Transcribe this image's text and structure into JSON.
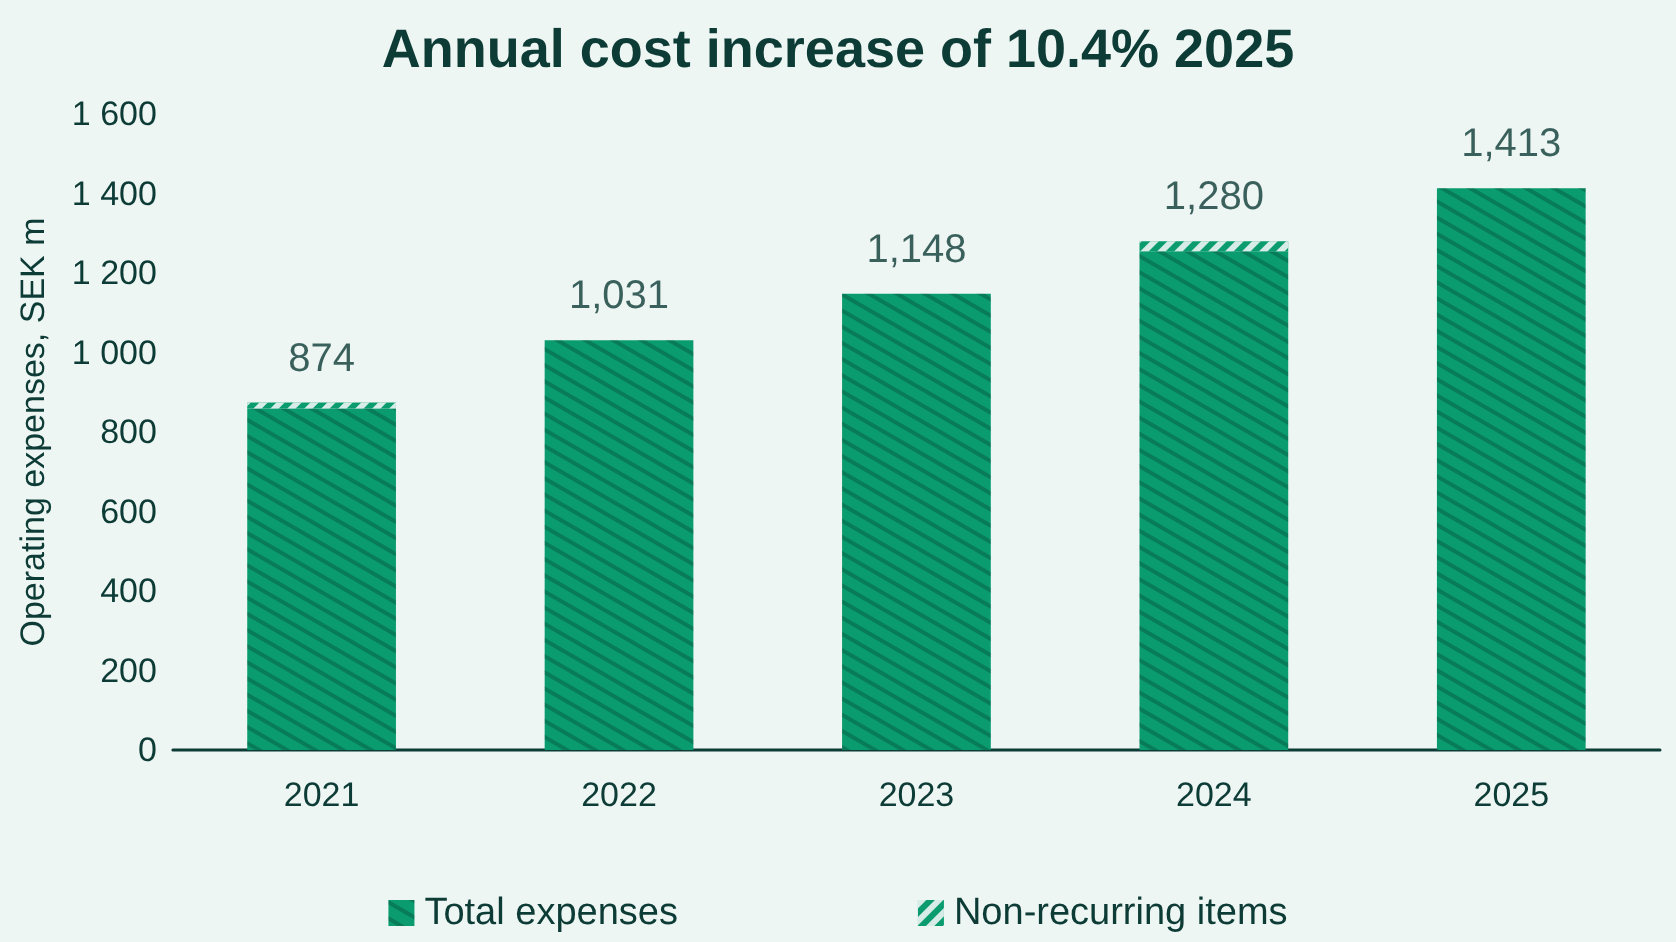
{
  "chart_data": {
    "type": "bar",
    "title": "Annual cost increase of 10.4% 2025",
    "ylabel": "Operating expenses, SEK m",
    "categories": [
      "2021",
      "2022",
      "2023",
      "2024",
      "2025"
    ],
    "series": [
      {
        "name": "Total expenses",
        "color": "#0a9b6e",
        "values": [
          859,
          1031,
          1148,
          1255,
          1413
        ]
      },
      {
        "name": "Non-recurring items",
        "color": "#0a9b6e",
        "values": [
          15,
          null,
          null,
          25,
          null
        ]
      }
    ],
    "stacked": true,
    "totals": [
      "874",
      "1,031",
      "1,148",
      "1,280",
      "1,413"
    ],
    "ylim": [
      0,
      1600
    ],
    "yticks": [
      0,
      200,
      400,
      600,
      800,
      {
        "value": 1000,
        "label": "1 000"
      },
      {
        "value": 1200,
        "label": "1 200"
      },
      {
        "value": 1400,
        "label": "1 400"
      },
      {
        "value": 1600,
        "label": "1 600"
      }
    ],
    "grid": false,
    "legend": "bottom"
  }
}
